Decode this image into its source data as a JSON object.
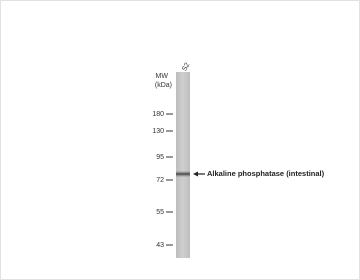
{
  "lanes": [
    "S2"
  ],
  "mw_label": [
    "MW",
    "(kDa)"
  ],
  "markers": [
    180,
    130,
    95,
    72,
    55,
    43
  ],
  "band_label": "Alkaline phosphatase (intestinal)"
}
